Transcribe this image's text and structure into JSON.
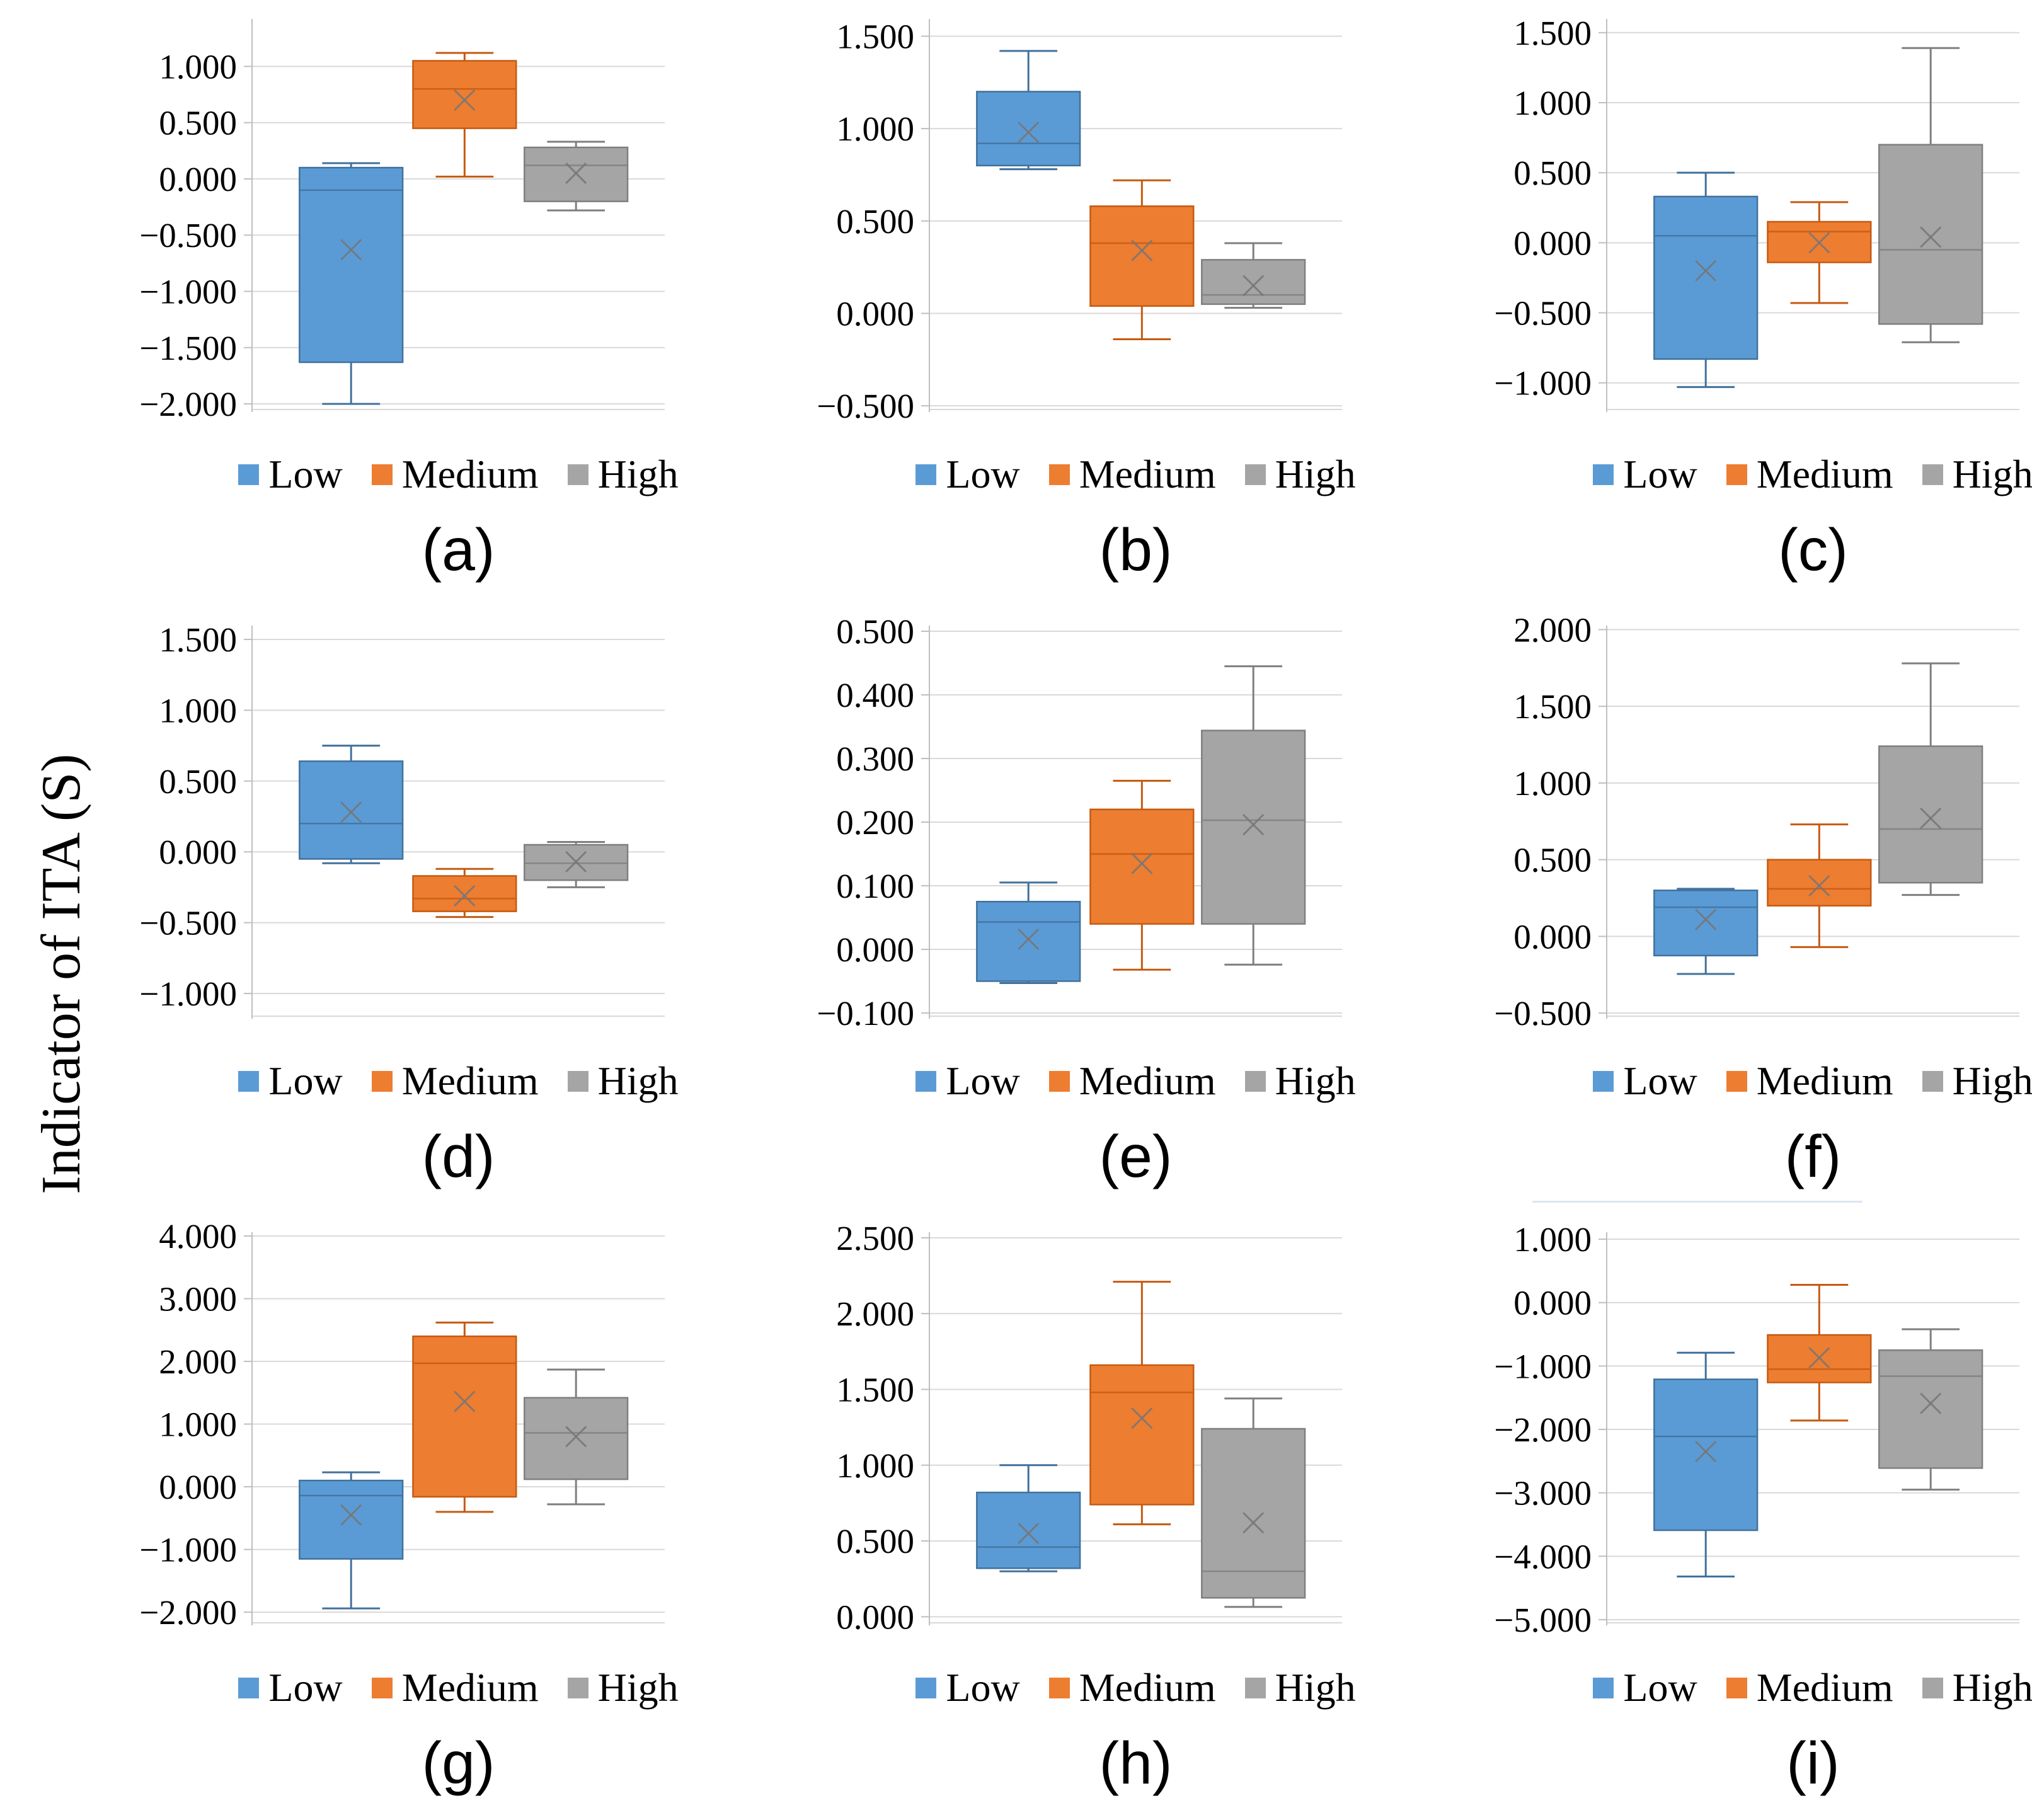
{
  "figure": {
    "y_axis_label": "Indicator of ITA (S)",
    "legend_items": [
      {
        "id": "low",
        "label": "Low",
        "color": "#5B9BD5",
        "border": "#41719C"
      },
      {
        "id": "medium",
        "label": "Medium",
        "color": "#ED7D31",
        "border": "#C55A11"
      },
      {
        "id": "high",
        "label": "High",
        "color": "#A5A5A5",
        "border": "#7F7F7F"
      }
    ],
    "colors": {
      "gridline": "#D9D9D9",
      "axis": "#BFBFBF",
      "mean_marker": "#757575",
      "text": "#000000",
      "background": "#FFFFFF"
    }
  },
  "chart_data": [
    {
      "id": "a",
      "label": "(a)",
      "type": "box",
      "categories": [
        "Low",
        "Medium",
        "High"
      ],
      "ylim": [
        -2.05,
        1.4
      ],
      "yticks": [
        1.0,
        0.5,
        0.0,
        -0.5,
        -1.0,
        -1.5,
        -2.0
      ],
      "tick_decimals": 3,
      "series": [
        {
          "name": "Low",
          "whisker_low": -2.0,
          "q1": -1.63,
          "median": -0.1,
          "q3": 0.1,
          "whisker_high": 0.14,
          "mean": -0.63
        },
        {
          "name": "Medium",
          "whisker_low": 0.02,
          "q1": 0.45,
          "median": 0.8,
          "q3": 1.05,
          "whisker_high": 1.12,
          "mean": 0.7
        },
        {
          "name": "High",
          "whisker_low": -0.28,
          "q1": -0.2,
          "median": 0.12,
          "q3": 0.28,
          "whisker_high": 0.33,
          "mean": 0.05
        }
      ]
    },
    {
      "id": "b",
      "label": "(b)",
      "type": "box",
      "categories": [
        "Low",
        "Medium",
        "High"
      ],
      "ylim": [
        -0.52,
        1.58
      ],
      "yticks": [
        1.5,
        1.0,
        0.5,
        0.0,
        -0.5
      ],
      "tick_decimals": 3,
      "series": [
        {
          "name": "Low",
          "whisker_low": 0.78,
          "q1": 0.8,
          "median": 0.92,
          "q3": 1.2,
          "whisker_high": 1.42,
          "mean": 0.98
        },
        {
          "name": "Medium",
          "whisker_low": -0.14,
          "q1": 0.04,
          "median": 0.38,
          "q3": 0.58,
          "whisker_high": 0.72,
          "mean": 0.34
        },
        {
          "name": "High",
          "whisker_low": 0.03,
          "q1": 0.05,
          "median": 0.1,
          "q3": 0.29,
          "whisker_high": 0.38,
          "mean": 0.15
        }
      ]
    },
    {
      "id": "c",
      "label": "(c)",
      "type": "box",
      "categories": [
        "Low",
        "Medium",
        "High"
      ],
      "ylim": [
        -1.19,
        1.58
      ],
      "yticks": [
        1.5,
        1.0,
        0.5,
        0.0,
        -0.5,
        -1.0
      ],
      "tick_decimals": 3,
      "series": [
        {
          "name": "Low",
          "whisker_low": -1.03,
          "q1": -0.83,
          "median": 0.05,
          "q3": 0.33,
          "whisker_high": 0.5,
          "mean": -0.2
        },
        {
          "name": "Medium",
          "whisker_low": -0.43,
          "q1": -0.14,
          "median": 0.08,
          "q3": 0.15,
          "whisker_high": 0.29,
          "mean": 0.0
        },
        {
          "name": "High",
          "whisker_low": -0.71,
          "q1": -0.58,
          "median": -0.05,
          "q3": 0.7,
          "whisker_high": 1.39,
          "mean": 0.04
        }
      ]
    },
    {
      "id": "d",
      "label": "(d)",
      "type": "box",
      "categories": [
        "Low",
        "Medium",
        "High"
      ],
      "ylim": [
        -1.16,
        1.58
      ],
      "yticks": [
        1.5,
        1.0,
        0.5,
        0.0,
        -0.5,
        -1.0
      ],
      "tick_decimals": 3,
      "series": [
        {
          "name": "Low",
          "whisker_low": -0.08,
          "q1": -0.05,
          "median": 0.2,
          "q3": 0.64,
          "whisker_high": 0.75,
          "mean": 0.28
        },
        {
          "name": "Medium",
          "whisker_low": -0.46,
          "q1": -0.42,
          "median": -0.33,
          "q3": -0.17,
          "whisker_high": -0.12,
          "mean": -0.31
        },
        {
          "name": "High",
          "whisker_low": -0.25,
          "q1": -0.2,
          "median": -0.08,
          "q3": 0.05,
          "whisker_high": 0.07,
          "mean": -0.07
        }
      ]
    },
    {
      "id": "e",
      "label": "(e)",
      "type": "box",
      "categories": [
        "Low",
        "Medium",
        "High"
      ],
      "ylim": [
        -0.105,
        0.505
      ],
      "yticks": [
        0.5,
        0.4,
        0.3,
        0.2,
        0.1,
        0.0,
        -0.1
      ],
      "tick_decimals": 3,
      "series": [
        {
          "name": "Low",
          "whisker_low": -0.053,
          "q1": -0.05,
          "median": 0.043,
          "q3": 0.075,
          "whisker_high": 0.105,
          "mean": 0.016
        },
        {
          "name": "Medium",
          "whisker_low": -0.032,
          "q1": 0.04,
          "median": 0.15,
          "q3": 0.22,
          "whisker_high": 0.265,
          "mean": 0.135
        },
        {
          "name": "High",
          "whisker_low": -0.024,
          "q1": 0.04,
          "median": 0.203,
          "q3": 0.344,
          "whisker_high": 0.445,
          "mean": 0.196
        }
      ]
    },
    {
      "id": "f",
      "label": "(f)",
      "type": "box",
      "categories": [
        "Low",
        "Medium",
        "High"
      ],
      "ylim": [
        -0.52,
        2.01
      ],
      "yticks": [
        2.0,
        1.5,
        1.0,
        0.5,
        0.0,
        -0.5
      ],
      "tick_decimals": 3,
      "series": [
        {
          "name": "Low",
          "whisker_low": -0.245,
          "q1": -0.125,
          "median": 0.19,
          "q3": 0.3,
          "whisker_high": 0.31,
          "mean": 0.11
        },
        {
          "name": "Medium",
          "whisker_low": -0.07,
          "q1": 0.2,
          "median": 0.31,
          "q3": 0.5,
          "whisker_high": 0.73,
          "mean": 0.33
        },
        {
          "name": "High",
          "whisker_low": 0.27,
          "q1": 0.35,
          "median": 0.7,
          "q3": 1.24,
          "whisker_high": 1.78,
          "mean": 0.77
        }
      ]
    },
    {
      "id": "g",
      "label": "(g)",
      "type": "box",
      "categories": [
        "Low",
        "Medium",
        "High"
      ],
      "ylim": [
        -2.17,
        4.02
      ],
      "yticks": [
        4.0,
        3.0,
        2.0,
        1.0,
        0.0,
        -1.0,
        -2.0
      ],
      "tick_decimals": 3,
      "series": [
        {
          "name": "Low",
          "whisker_low": -1.94,
          "q1": -1.15,
          "median": -0.14,
          "q3": 0.1,
          "whisker_high": 0.23,
          "mean": -0.45
        },
        {
          "name": "Medium",
          "whisker_low": -0.4,
          "q1": -0.16,
          "median": 1.97,
          "q3": 2.4,
          "whisker_high": 2.62,
          "mean": 1.36
        },
        {
          "name": "High",
          "whisker_low": -0.28,
          "q1": 0.12,
          "median": 0.86,
          "q3": 1.42,
          "whisker_high": 1.87,
          "mean": 0.8
        }
      ]
    },
    {
      "id": "h",
      "label": "(h)",
      "type": "box",
      "categories": [
        "Low",
        "Medium",
        "High"
      ],
      "ylim": [
        -0.04,
        2.52
      ],
      "yticks": [
        2.5,
        2.0,
        1.5,
        1.0,
        0.5,
        0.0
      ],
      "tick_decimals": 3,
      "series": [
        {
          "name": "Low",
          "whisker_low": 0.3,
          "q1": 0.32,
          "median": 0.46,
          "q3": 0.82,
          "whisker_high": 1.0,
          "mean": 0.55
        },
        {
          "name": "Medium",
          "whisker_low": 0.61,
          "q1": 0.74,
          "median": 1.48,
          "q3": 1.66,
          "whisker_high": 2.21,
          "mean": 1.31
        },
        {
          "name": "High",
          "whisker_low": 0.065,
          "q1": 0.125,
          "median": 0.3,
          "q3": 1.24,
          "whisker_high": 1.44,
          "mean": 0.62
        }
      ]
    },
    {
      "id": "i",
      "label": "(i)",
      "type": "box",
      "categories": [
        "Low",
        "Medium",
        "High"
      ],
      "ylim": [
        -5.05,
        1.07
      ],
      "yticks": [
        1.0,
        0.0,
        -1.0,
        -2.0,
        -3.0,
        -4.0,
        -5.0
      ],
      "tick_decimals": 3,
      "series": [
        {
          "name": "Low",
          "whisker_low": -4.32,
          "q1": -3.59,
          "median": -2.11,
          "q3": -1.21,
          "whisker_high": -0.79,
          "mean": -2.35
        },
        {
          "name": "Medium",
          "whisker_low": -1.86,
          "q1": -1.26,
          "median": -1.05,
          "q3": -0.51,
          "whisker_high": 0.28,
          "mean": -0.87
        },
        {
          "name": "High",
          "whisker_low": -2.95,
          "q1": -2.61,
          "median": -1.16,
          "q3": -0.75,
          "whisker_high": -0.42,
          "mean": -1.59
        }
      ]
    }
  ]
}
